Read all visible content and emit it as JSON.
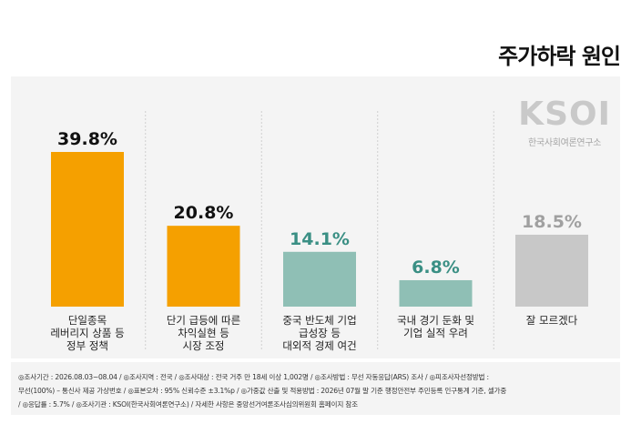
{
  "title": "주가하락 원인",
  "logo": {
    "mark": "KSOI",
    "subtitle": "한국사회여론연구소"
  },
  "colors": {
    "orange": "#f5a000",
    "teal": "#8fbfb5",
    "gray": "#c8c8c8"
  },
  "chart_data": {
    "type": "bar",
    "categories": [
      [
        "단일종목",
        "레버리지 상품 등",
        "정부 정책"
      ],
      [
        "단기 급등에 따른",
        "차익실현 등",
        "시장 조정"
      ],
      [
        "중국 반도체 기업",
        "급성장 등",
        "대외적 경제 여건"
      ],
      [
        "국내 경기 둔화 및",
        "기업 실적 우려"
      ],
      [
        "잘 모르겠다"
      ]
    ],
    "values": [
      39.8,
      20.8,
      14.1,
      6.8,
      18.5
    ],
    "value_labels": [
      "39.8%",
      "20.8%",
      "14.1%",
      "6.8%",
      "18.5%"
    ],
    "bar_colors": [
      "#f5a000",
      "#f5a000",
      "#8fbfb5",
      "#8fbfb5",
      "#c8c8c8"
    ],
    "label_colors": [
      "#111111",
      "#111111",
      "#3a8f84",
      "#3a8f84",
      "#a0a0a0"
    ],
    "ylim": [
      0,
      39.8
    ],
    "grid": false
  },
  "footer": {
    "line1": "◎조사기간 : 2026.08.03~08.04 / ◎조사지역 : 전국 / ◎조사대상 : 전국 거주 만 18세 이상 1,002명 / ◎조사방법 : 무선 자동응답(ARS) 조사 / ◎피조사자선정방법 :",
    "line2": "무선(100%) – 통신사 제공 가상번호 / ◎표본오차 : 95% 신뢰수준 ±3.1%p / ◎가중값 산출 및 적용방법 : 2026년 07월 말 기준 행정안전부 주민등록 인구통계 기준, 셀가중",
    "line3": "/ ◎응답률 : 5.7% / ◎조사기관 : KSOI(한국사회여론연구소) / 자세한 사항은 중앙선거여론조사심의위원회 홈페이지 참조"
  }
}
